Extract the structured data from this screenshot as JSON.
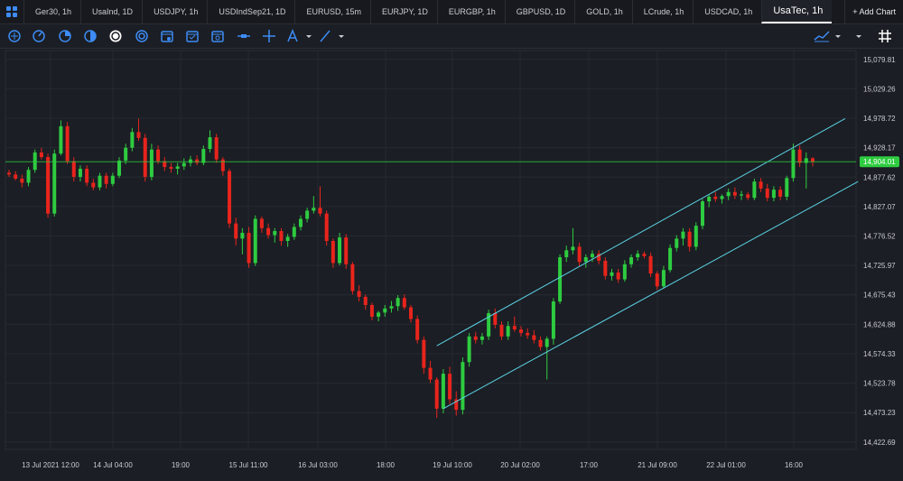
{
  "tabs": [
    {
      "label": "Ger30, 1h"
    },
    {
      "label": "UsaInd, 1D"
    },
    {
      "label": "USDJPY, 1h"
    },
    {
      "label": "USDIndSep21, 1D"
    },
    {
      "label": "EURUSD, 15m"
    },
    {
      "label": "EURJPY, 1D"
    },
    {
      "label": "EURGBP, 1h"
    },
    {
      "label": "GBPUSD, 1D"
    },
    {
      "label": "GOLD, 1h"
    },
    {
      "label": "LCrude, 1h"
    },
    {
      "label": "USDCAD, 1h"
    },
    {
      "label": "UsaTec, 1h",
      "active": true
    }
  ],
  "add_chart_label": "+ Add Chart",
  "toolbar_icons": [
    "crosshair-circle-icon",
    "clock-icon",
    "pie-icon",
    "half-circle-icon",
    "target-icon",
    "ring-icon",
    "calendar-icon",
    "calendar-2-icon",
    "calendar-3-icon",
    "horizontal-line-icon",
    "crosshair-icon",
    "text-tool-icon",
    "trendline-tool-icon",
    "indicator-icon",
    "grid-icon"
  ],
  "colors": {
    "up": "#2ecc40",
    "down": "#e8241c",
    "channel": "#5bd3e6",
    "price_line": "#2ecc40",
    "bg": "#1b1e24"
  },
  "chart_data": {
    "type": "candlestick",
    "symbol": "UsaTec, 1h",
    "current_price": "14,904.01",
    "y_ticks": [
      "15,079.81",
      "15,029.26",
      "14,978.72",
      "14,928.17",
      "14,877.62",
      "14,827.07",
      "14,776.52",
      "14,725.97",
      "14,675.43",
      "14,624.88",
      "14,574.33",
      "14,523.78",
      "14,473.23",
      "14,422.69"
    ],
    "ylim": [
      14410,
      15095
    ],
    "x_ticks": [
      "13 Jul 2021 12:00",
      "14 Jul 04:00",
      "19:00",
      "15 Jul 11:00",
      "16 Jul 03:00",
      "18:00",
      "19 Jul 10:00",
      "20 Jul 02:00",
      "17:00",
      "21 Jul 09:00",
      "22 Jul 01:00",
      "16:00"
    ],
    "candles": [
      {
        "o": 14885,
        "h": 14890,
        "l": 14878,
        "c": 14882
      },
      {
        "o": 14882,
        "h": 14888,
        "l": 14872,
        "c": 14875
      },
      {
        "o": 14875,
        "h": 14882,
        "l": 14860,
        "c": 14868
      },
      {
        "o": 14868,
        "h": 14895,
        "l": 14862,
        "c": 14890
      },
      {
        "o": 14890,
        "h": 14925,
        "l": 14885,
        "c": 14920
      },
      {
        "o": 14920,
        "h": 14928,
        "l": 14908,
        "c": 14912
      },
      {
        "o": 14912,
        "h": 14918,
        "l": 14808,
        "c": 14815
      },
      {
        "o": 14815,
        "h": 14925,
        "l": 14810,
        "c": 14918
      },
      {
        "o": 14918,
        "h": 14975,
        "l": 14915,
        "c": 14965
      },
      {
        "o": 14965,
        "h": 14972,
        "l": 14900,
        "c": 14905
      },
      {
        "o": 14905,
        "h": 14912,
        "l": 14870,
        "c": 14878
      },
      {
        "o": 14878,
        "h": 14898,
        "l": 14870,
        "c": 14892
      },
      {
        "o": 14892,
        "h": 14898,
        "l": 14862,
        "c": 14868
      },
      {
        "o": 14868,
        "h": 14875,
        "l": 14855,
        "c": 14860
      },
      {
        "o": 14860,
        "h": 14885,
        "l": 14855,
        "c": 14880
      },
      {
        "o": 14880,
        "h": 14885,
        "l": 14858,
        "c": 14866
      },
      {
        "o": 14866,
        "h": 14885,
        "l": 14862,
        "c": 14880
      },
      {
        "o": 14880,
        "h": 14912,
        "l": 14876,
        "c": 14906
      },
      {
        "o": 14906,
        "h": 14935,
        "l": 14900,
        "c": 14928
      },
      {
        "o": 14928,
        "h": 14962,
        "l": 14922,
        "c": 14955
      },
      {
        "o": 14955,
        "h": 14978,
        "l": 14940,
        "c": 14945
      },
      {
        "o": 14945,
        "h": 14952,
        "l": 14870,
        "c": 14878
      },
      {
        "o": 14878,
        "h": 14935,
        "l": 14872,
        "c": 14925
      },
      {
        "o": 14925,
        "h": 14932,
        "l": 14900,
        "c": 14905
      },
      {
        "o": 14905,
        "h": 14912,
        "l": 14888,
        "c": 14895
      },
      {
        "o": 14895,
        "h": 14902,
        "l": 14885,
        "c": 14892
      },
      {
        "o": 14892,
        "h": 14902,
        "l": 14882,
        "c": 14896
      },
      {
        "o": 14896,
        "h": 14910,
        "l": 14890,
        "c": 14902
      },
      {
        "o": 14902,
        "h": 14914,
        "l": 14896,
        "c": 14908
      },
      {
        "o": 14908,
        "h": 14915,
        "l": 14898,
        "c": 14902
      },
      {
        "o": 14902,
        "h": 14932,
        "l": 14898,
        "c": 14926
      },
      {
        "o": 14926,
        "h": 14958,
        "l": 14920,
        "c": 14946
      },
      {
        "o": 14946,
        "h": 14952,
        "l": 14902,
        "c": 14908
      },
      {
        "o": 14908,
        "h": 14912,
        "l": 14880,
        "c": 14888
      },
      {
        "o": 14888,
        "h": 14892,
        "l": 14790,
        "c": 14798
      },
      {
        "o": 14798,
        "h": 14808,
        "l": 14760,
        "c": 14772
      },
      {
        "o": 14772,
        "h": 14790,
        "l": 14745,
        "c": 14782
      },
      {
        "o": 14782,
        "h": 14792,
        "l": 14722,
        "c": 14730
      },
      {
        "o": 14730,
        "h": 14812,
        "l": 14725,
        "c": 14806
      },
      {
        "o": 14806,
        "h": 14810,
        "l": 14782,
        "c": 14790
      },
      {
        "o": 14790,
        "h": 14798,
        "l": 14772,
        "c": 14778
      },
      {
        "o": 14778,
        "h": 14790,
        "l": 14765,
        "c": 14785
      },
      {
        "o": 14785,
        "h": 14790,
        "l": 14760,
        "c": 14768
      },
      {
        "o": 14768,
        "h": 14780,
        "l": 14758,
        "c": 14775
      },
      {
        "o": 14775,
        "h": 14798,
        "l": 14770,
        "c": 14792
      },
      {
        "o": 14792,
        "h": 14812,
        "l": 14786,
        "c": 14806
      },
      {
        "o": 14806,
        "h": 14825,
        "l": 14800,
        "c": 14820
      },
      {
        "o": 14820,
        "h": 14845,
        "l": 14815,
        "c": 14825
      },
      {
        "o": 14825,
        "h": 14862,
        "l": 14810,
        "c": 14815
      },
      {
        "o": 14815,
        "h": 14820,
        "l": 14760,
        "c": 14768
      },
      {
        "o": 14768,
        "h": 14772,
        "l": 14722,
        "c": 14730
      },
      {
        "o": 14730,
        "h": 14782,
        "l": 14726,
        "c": 14774
      },
      {
        "o": 14774,
        "h": 14780,
        "l": 14720,
        "c": 14728
      },
      {
        "o": 14728,
        "h": 14732,
        "l": 14676,
        "c": 14682
      },
      {
        "o": 14682,
        "h": 14692,
        "l": 14664,
        "c": 14672
      },
      {
        "o": 14672,
        "h": 14676,
        "l": 14650,
        "c": 14658
      },
      {
        "o": 14658,
        "h": 14662,
        "l": 14632,
        "c": 14638
      },
      {
        "o": 14638,
        "h": 14648,
        "l": 14630,
        "c": 14645
      },
      {
        "o": 14645,
        "h": 14658,
        "l": 14638,
        "c": 14652
      },
      {
        "o": 14652,
        "h": 14665,
        "l": 14645,
        "c": 14656
      },
      {
        "o": 14656,
        "h": 14675,
        "l": 14648,
        "c": 14670
      },
      {
        "o": 14670,
        "h": 14676,
        "l": 14650,
        "c": 14654
      },
      {
        "o": 14654,
        "h": 14658,
        "l": 14628,
        "c": 14634
      },
      {
        "o": 14634,
        "h": 14640,
        "l": 14592,
        "c": 14598
      },
      {
        "o": 14598,
        "h": 14604,
        "l": 14540,
        "c": 14550
      },
      {
        "o": 14550,
        "h": 14562,
        "l": 14524,
        "c": 14530
      },
      {
        "o": 14530,
        "h": 14534,
        "l": 14464,
        "c": 14480
      },
      {
        "o": 14480,
        "h": 14548,
        "l": 14472,
        "c": 14540
      },
      {
        "o": 14540,
        "h": 14552,
        "l": 14488,
        "c": 14496
      },
      {
        "o": 14496,
        "h": 14510,
        "l": 14468,
        "c": 14478
      },
      {
        "o": 14478,
        "h": 14568,
        "l": 14470,
        "c": 14560
      },
      {
        "o": 14560,
        "h": 14610,
        "l": 14552,
        "c": 14604
      },
      {
        "o": 14604,
        "h": 14612,
        "l": 14592,
        "c": 14598
      },
      {
        "o": 14598,
        "h": 14610,
        "l": 14590,
        "c": 14604
      },
      {
        "o": 14604,
        "h": 14650,
        "l": 14598,
        "c": 14644
      },
      {
        "o": 14644,
        "h": 14652,
        "l": 14618,
        "c": 14624
      },
      {
        "o": 14624,
        "h": 14630,
        "l": 14598,
        "c": 14604
      },
      {
        "o": 14604,
        "h": 14630,
        "l": 14598,
        "c": 14622
      },
      {
        "o": 14622,
        "h": 14638,
        "l": 14612,
        "c": 14616
      },
      {
        "o": 14616,
        "h": 14622,
        "l": 14604,
        "c": 14610
      },
      {
        "o": 14610,
        "h": 14618,
        "l": 14600,
        "c": 14606
      },
      {
        "o": 14606,
        "h": 14615,
        "l": 14592,
        "c": 14598
      },
      {
        "o": 14598,
        "h": 14604,
        "l": 14580,
        "c": 14586
      },
      {
        "o": 14586,
        "h": 14604,
        "l": 14530,
        "c": 14600
      },
      {
        "o": 14600,
        "h": 14670,
        "l": 14590,
        "c": 14664
      },
      {
        "o": 14664,
        "h": 14745,
        "l": 14660,
        "c": 14740
      },
      {
        "o": 14740,
        "h": 14760,
        "l": 14732,
        "c": 14752
      },
      {
        "o": 14752,
        "h": 14790,
        "l": 14745,
        "c": 14758
      },
      {
        "o": 14758,
        "h": 14765,
        "l": 14725,
        "c": 14732
      },
      {
        "o": 14732,
        "h": 14745,
        "l": 14722,
        "c": 14740
      },
      {
        "o": 14740,
        "h": 14752,
        "l": 14732,
        "c": 14746
      },
      {
        "o": 14746,
        "h": 14752,
        "l": 14728,
        "c": 14734
      },
      {
        "o": 14734,
        "h": 14740,
        "l": 14702,
        "c": 14708
      },
      {
        "o": 14708,
        "h": 14720,
        "l": 14700,
        "c": 14714
      },
      {
        "o": 14714,
        "h": 14720,
        "l": 14696,
        "c": 14702
      },
      {
        "o": 14702,
        "h": 14735,
        "l": 14698,
        "c": 14728
      },
      {
        "o": 14728,
        "h": 14745,
        "l": 14722,
        "c": 14740
      },
      {
        "o": 14740,
        "h": 14752,
        "l": 14734,
        "c": 14746
      },
      {
        "o": 14746,
        "h": 14750,
        "l": 14738,
        "c": 14742
      },
      {
        "o": 14742,
        "h": 14748,
        "l": 14706,
        "c": 14712
      },
      {
        "o": 14712,
        "h": 14716,
        "l": 14684,
        "c": 14690
      },
      {
        "o": 14690,
        "h": 14725,
        "l": 14686,
        "c": 14718
      },
      {
        "o": 14718,
        "h": 14762,
        "l": 14714,
        "c": 14756
      },
      {
        "o": 14756,
        "h": 14778,
        "l": 14750,
        "c": 14772
      },
      {
        "o": 14772,
        "h": 14790,
        "l": 14760,
        "c": 14784
      },
      {
        "o": 14784,
        "h": 14790,
        "l": 14750,
        "c": 14758
      },
      {
        "o": 14758,
        "h": 14800,
        "l": 14752,
        "c": 14794
      },
      {
        "o": 14794,
        "h": 14840,
        "l": 14788,
        "c": 14836
      },
      {
        "o": 14836,
        "h": 14848,
        "l": 14826,
        "c": 14844
      },
      {
        "o": 14844,
        "h": 14852,
        "l": 14835,
        "c": 14840
      },
      {
        "o": 14840,
        "h": 14848,
        "l": 14832,
        "c": 14845
      },
      {
        "o": 14845,
        "h": 14858,
        "l": 14838,
        "c": 14852
      },
      {
        "o": 14852,
        "h": 14860,
        "l": 14840,
        "c": 14846
      },
      {
        "o": 14846,
        "h": 14854,
        "l": 14838,
        "c": 14848
      },
      {
        "o": 14848,
        "h": 14852,
        "l": 14838,
        "c": 14842
      },
      {
        "o": 14842,
        "h": 14875,
        "l": 14838,
        "c": 14870
      },
      {
        "o": 14870,
        "h": 14876,
        "l": 14852,
        "c": 14858
      },
      {
        "o": 14858,
        "h": 14866,
        "l": 14836,
        "c": 14842
      },
      {
        "o": 14842,
        "h": 14862,
        "l": 14836,
        "c": 14856
      },
      {
        "o": 14856,
        "h": 14862,
        "l": 14838,
        "c": 14844
      },
      {
        "o": 14844,
        "h": 14880,
        "l": 14838,
        "c": 14876
      },
      {
        "o": 14876,
        "h": 14935,
        "l": 14870,
        "c": 14925
      },
      {
        "o": 14925,
        "h": 14932,
        "l": 14895,
        "c": 14902
      },
      {
        "o": 14902,
        "h": 14920,
        "l": 14858,
        "c": 14910
      },
      {
        "o": 14910,
        "h": 14912,
        "l": 14896,
        "c": 14904
      }
    ],
    "channel_upper": {
      "from": [
        66,
        14588
      ],
      "to": [
        129,
        14978
      ]
    },
    "channel_lower": {
      "from": [
        67,
        14480
      ],
      "to": [
        131,
        14870
      ]
    },
    "grid": true
  }
}
